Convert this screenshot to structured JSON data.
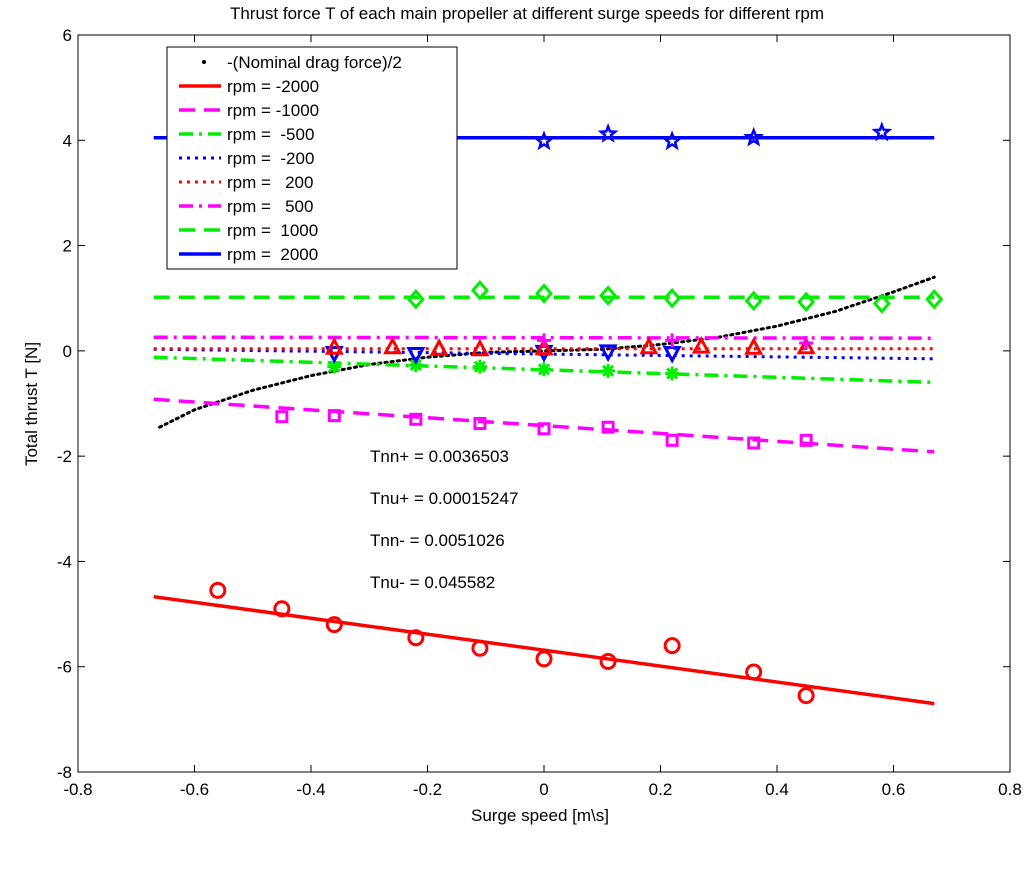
{
  "chart_data": {
    "type": "line",
    "title": "Thrust force T of each main propeller at different surge speeds for different rpm",
    "xlabel": "Surge speed [m\\s]",
    "ylabel": "Total thrust T [N]",
    "xlim": [
      -0.8,
      0.8
    ],
    "ylim": [
      -8,
      6
    ],
    "xticks": [
      -0.8,
      -0.6,
      -0.4,
      -0.2,
      0,
      0.2,
      0.4,
      0.6,
      0.8
    ],
    "yticks": [
      -8,
      -6,
      -4,
      -2,
      0,
      2,
      4,
      6
    ],
    "xtick_labels": [
      "-0.8",
      "-0.6",
      "-0.4",
      "-0.2",
      "0",
      "0.2",
      "0.4",
      "0.6",
      "0.8"
    ],
    "ytick_labels": [
      "-8",
      "-6",
      "-4",
      "-2",
      "0",
      "2",
      "4",
      "6"
    ],
    "grid": false,
    "legend_position": "top-left",
    "annotations": [
      {
        "text": "Tnn+ = 0.0036503",
        "x": -0.3,
        "y": -2.0
      },
      {
        "text": "Tnu+ = 0.00015247",
        "x": -0.3,
        "y": -2.8
      },
      {
        "text": "Tnn- = 0.0051026",
        "x": -0.3,
        "y": -3.6
      },
      {
        "text": "Tnu- = 0.045582",
        "x": -0.3,
        "y": -4.4
      }
    ],
    "series": [
      {
        "name": "-(Nominal drag force)/2",
        "color": "#000000",
        "style": "dotted-fine",
        "marker": "none",
        "x": [
          -0.66,
          -0.6,
          -0.5,
          -0.4,
          -0.3,
          -0.2,
          -0.1,
          0,
          0.1,
          0.2,
          0.3,
          0.4,
          0.5,
          0.6,
          0.67
        ],
        "y": [
          -1.45,
          -1.12,
          -0.75,
          -0.47,
          -0.26,
          -0.12,
          -0.03,
          0,
          0.03,
          0.12,
          0.26,
          0.47,
          0.75,
          1.12,
          1.4
        ],
        "points_x": [],
        "points_y": []
      },
      {
        "name": "rpm = -2000",
        "color": "#ff0000",
        "style": "solid",
        "marker": "circle",
        "x": [
          -0.67,
          0.67
        ],
        "y": [
          -4.67,
          -6.7
        ],
        "points_x": [
          -0.56,
          -0.45,
          -0.36,
          -0.22,
          -0.11,
          0,
          0.11,
          0.22,
          0.36,
          0.45
        ],
        "points_y": [
          -4.55,
          -4.9,
          -5.2,
          -5.45,
          -5.65,
          -5.85,
          -5.9,
          -5.6,
          -6.1,
          -6.55
        ]
      },
      {
        "name": "rpm = -1000",
        "color": "#ff00ff",
        "style": "dashed",
        "marker": "square",
        "x": [
          -0.67,
          0.67
        ],
        "y": [
          -0.92,
          -1.92
        ],
        "points_x": [
          -0.45,
          -0.36,
          -0.22,
          -0.11,
          0,
          0.11,
          0.22,
          0.36,
          0.45
        ],
        "points_y": [
          -1.25,
          -1.23,
          -1.3,
          -1.38,
          -1.48,
          -1.45,
          -1.7,
          -1.75,
          -1.7
        ]
      },
      {
        "name": "rpm =  -500",
        "color": "#00ee00",
        "style": "dashdot",
        "marker": "asterisk",
        "x": [
          -0.67,
          0.67
        ],
        "y": [
          -0.12,
          -0.6
        ],
        "points_x": [
          -0.36,
          -0.22,
          -0.11,
          0,
          0.11,
          0.22
        ],
        "points_y": [
          -0.3,
          -0.27,
          -0.3,
          -0.35,
          -0.38,
          -0.43
        ]
      },
      {
        "name": "rpm =  -200",
        "color": "#0000ff",
        "style": "dotted",
        "marker": "triangle-down",
        "x": [
          -0.67,
          0.67
        ],
        "y": [
          0.03,
          -0.15
        ],
        "points_x": [
          -0.36,
          -0.22,
          0,
          0.11,
          0.22
        ],
        "points_y": [
          -0.05,
          -0.07,
          -0.03,
          -0.02,
          -0.05
        ]
      },
      {
        "name": "rpm =   200",
        "color": "#ff0000",
        "style": "dotted",
        "marker": "triangle-up",
        "x": [
          -0.67,
          0.67
        ],
        "y": [
          0.04,
          0.04
        ],
        "points_x": [
          -0.36,
          -0.26,
          -0.18,
          -0.11,
          0,
          0.18,
          0.27,
          0.36,
          0.45
        ],
        "points_y": [
          0.05,
          0.06,
          0.03,
          0.02,
          0.04,
          0.06,
          0.07,
          0.05,
          0.06
        ]
      },
      {
        "name": "rpm =   500",
        "color": "#ff00ff",
        "style": "dashdot",
        "marker": "plus",
        "x": [
          -0.67,
          0.67
        ],
        "y": [
          0.26,
          0.24
        ],
        "points_x": [
          0,
          0.22,
          0.45
        ],
        "points_y": [
          0.2,
          0.2,
          0.15
        ]
      },
      {
        "name": "rpm =  1000",
        "color": "#00ee00",
        "style": "dashed",
        "marker": "diamond",
        "x": [
          -0.67,
          0.67
        ],
        "y": [
          1.02,
          1.02
        ],
        "points_x": [
          -0.22,
          -0.11,
          0,
          0.11,
          0.22,
          0.36,
          0.45,
          0.58,
          0.67
        ],
        "points_y": [
          0.98,
          1.15,
          1.09,
          1.05,
          1.0,
          0.95,
          0.93,
          0.9,
          0.98
        ]
      },
      {
        "name": "rpm =  2000",
        "color": "#0000ff",
        "style": "solid",
        "marker": "star",
        "x": [
          -0.67,
          0.67
        ],
        "y": [
          4.05,
          4.05
        ],
        "points_x": [
          0,
          0.11,
          0.22,
          0.36,
          0.58
        ],
        "points_y": [
          3.98,
          4.12,
          3.98,
          4.05,
          4.15
        ]
      }
    ]
  }
}
